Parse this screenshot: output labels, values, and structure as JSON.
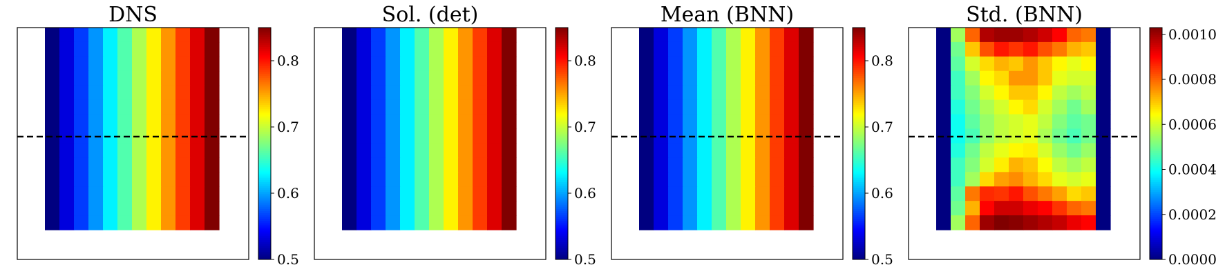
{
  "chart_data": [
    {
      "type": "heatmap",
      "title": "DNS",
      "grid": false,
      "colormap": "jet",
      "colorbar": {
        "vmin": 0.5,
        "vmax": 0.85,
        "ticks": [
          "0.5",
          "0.6",
          "0.7",
          "0.8"
        ],
        "tick_values": [
          0.5,
          0.6,
          0.7,
          0.8
        ]
      },
      "dashed_line": true,
      "columns": [
        0.5,
        0.532,
        0.564,
        0.595,
        0.627,
        0.659,
        0.691,
        0.723,
        0.755,
        0.786,
        0.818,
        0.85
      ],
      "rows": 14
    },
    {
      "type": "heatmap",
      "title": "Sol. (det)",
      "grid": false,
      "colormap": "jet",
      "colorbar": {
        "vmin": 0.5,
        "vmax": 0.85,
        "ticks": [
          "0.5",
          "0.6",
          "0.7",
          "0.8"
        ],
        "tick_values": [
          0.5,
          0.6,
          0.7,
          0.8
        ]
      },
      "dashed_line": false,
      "columns": [
        0.5,
        0.532,
        0.564,
        0.595,
        0.627,
        0.659,
        0.691,
        0.723,
        0.755,
        0.786,
        0.818,
        0.85
      ],
      "rows": 14
    },
    {
      "type": "heatmap",
      "title": "Mean (BNN)",
      "grid": false,
      "colormap": "jet",
      "colorbar": {
        "vmin": 0.5,
        "vmax": 0.85,
        "ticks": [
          "0.5",
          "0.6",
          "0.7",
          "0.8"
        ],
        "tick_values": [
          0.5,
          0.6,
          0.7,
          0.8
        ]
      },
      "dashed_line": true,
      "columns": [
        0.5,
        0.532,
        0.564,
        0.595,
        0.627,
        0.659,
        0.691,
        0.723,
        0.755,
        0.786,
        0.818,
        0.85
      ],
      "rows": 14
    },
    {
      "type": "heatmap",
      "title": "Std. (BNN)",
      "grid": false,
      "colormap": "jet",
      "colorbar": {
        "vmin": 0.0,
        "vmax": 0.00103,
        "ticks": [
          "0.0000",
          "0.0002",
          "0.0004",
          "0.0006",
          "0.0008",
          "0.0010"
        ],
        "tick_values": [
          0.0,
          0.0002,
          0.0004,
          0.0006,
          0.0008,
          0.001
        ]
      },
      "dashed_line": true,
      "matrix": [
        [
          0.0,
          0.00055,
          0.0008,
          0.00098,
          0.001,
          0.001,
          0.00098,
          0.00095,
          0.0009,
          0.0008,
          0.00078,
          0.0
        ],
        [
          0.0,
          0.0005,
          0.0007,
          0.00082,
          0.00088,
          0.00085,
          0.00088,
          0.00082,
          0.00078,
          0.00072,
          0.0007,
          0.0
        ],
        [
          0.0,
          0.00048,
          0.0006,
          0.00068,
          0.00072,
          0.0007,
          0.00075,
          0.0007,
          0.00065,
          0.00062,
          0.00065,
          0.0
        ],
        [
          0.0,
          0.00045,
          0.00055,
          0.00065,
          0.00068,
          0.00075,
          0.00075,
          0.0007,
          0.00062,
          0.0006,
          0.0006,
          0.0
        ],
        [
          0.0,
          0.00045,
          0.00052,
          0.0006,
          0.00065,
          0.0007,
          0.0007,
          0.00065,
          0.00058,
          0.00055,
          0.00058,
          0.0
        ],
        [
          0.0,
          0.00042,
          0.0005,
          0.00056,
          0.0006,
          0.00065,
          0.00068,
          0.0006,
          0.00055,
          0.0005,
          0.00055,
          0.0
        ],
        [
          0.0,
          0.0004,
          0.00048,
          0.00054,
          0.00058,
          0.0006,
          0.00062,
          0.00058,
          0.00052,
          0.00048,
          0.0005,
          0.0
        ],
        [
          0.0,
          0.0004,
          0.00046,
          0.00054,
          0.00058,
          0.0006,
          0.00062,
          0.00056,
          0.0005,
          0.00046,
          0.0005,
          0.0
        ],
        [
          0.0,
          0.00042,
          0.0005,
          0.00058,
          0.00062,
          0.00065,
          0.00066,
          0.0006,
          0.00054,
          0.0005,
          0.00054,
          0.0
        ],
        [
          0.0,
          0.00045,
          0.00052,
          0.0006,
          0.00066,
          0.00072,
          0.0007,
          0.00064,
          0.00058,
          0.00055,
          0.00058,
          0.0
        ],
        [
          0.0,
          0.00045,
          0.00055,
          0.00068,
          0.00074,
          0.00076,
          0.00072,
          0.00068,
          0.00062,
          0.0006,
          0.00062,
          0.0
        ],
        [
          0.0,
          0.00048,
          0.00078,
          0.00086,
          0.00085,
          0.00088,
          0.00082,
          0.00078,
          0.00074,
          0.00068,
          0.0007,
          0.0
        ],
        [
          0.0,
          0.0005,
          0.00072,
          0.0009,
          0.00095,
          0.00095,
          0.00092,
          0.0009,
          0.00085,
          0.0008,
          0.00078,
          0.0
        ],
        [
          0.0,
          0.00055,
          0.0008,
          0.001,
          0.00103,
          0.00102,
          0.001,
          0.00098,
          0.00096,
          0.00092,
          0.0009,
          0.0
        ]
      ]
    }
  ]
}
